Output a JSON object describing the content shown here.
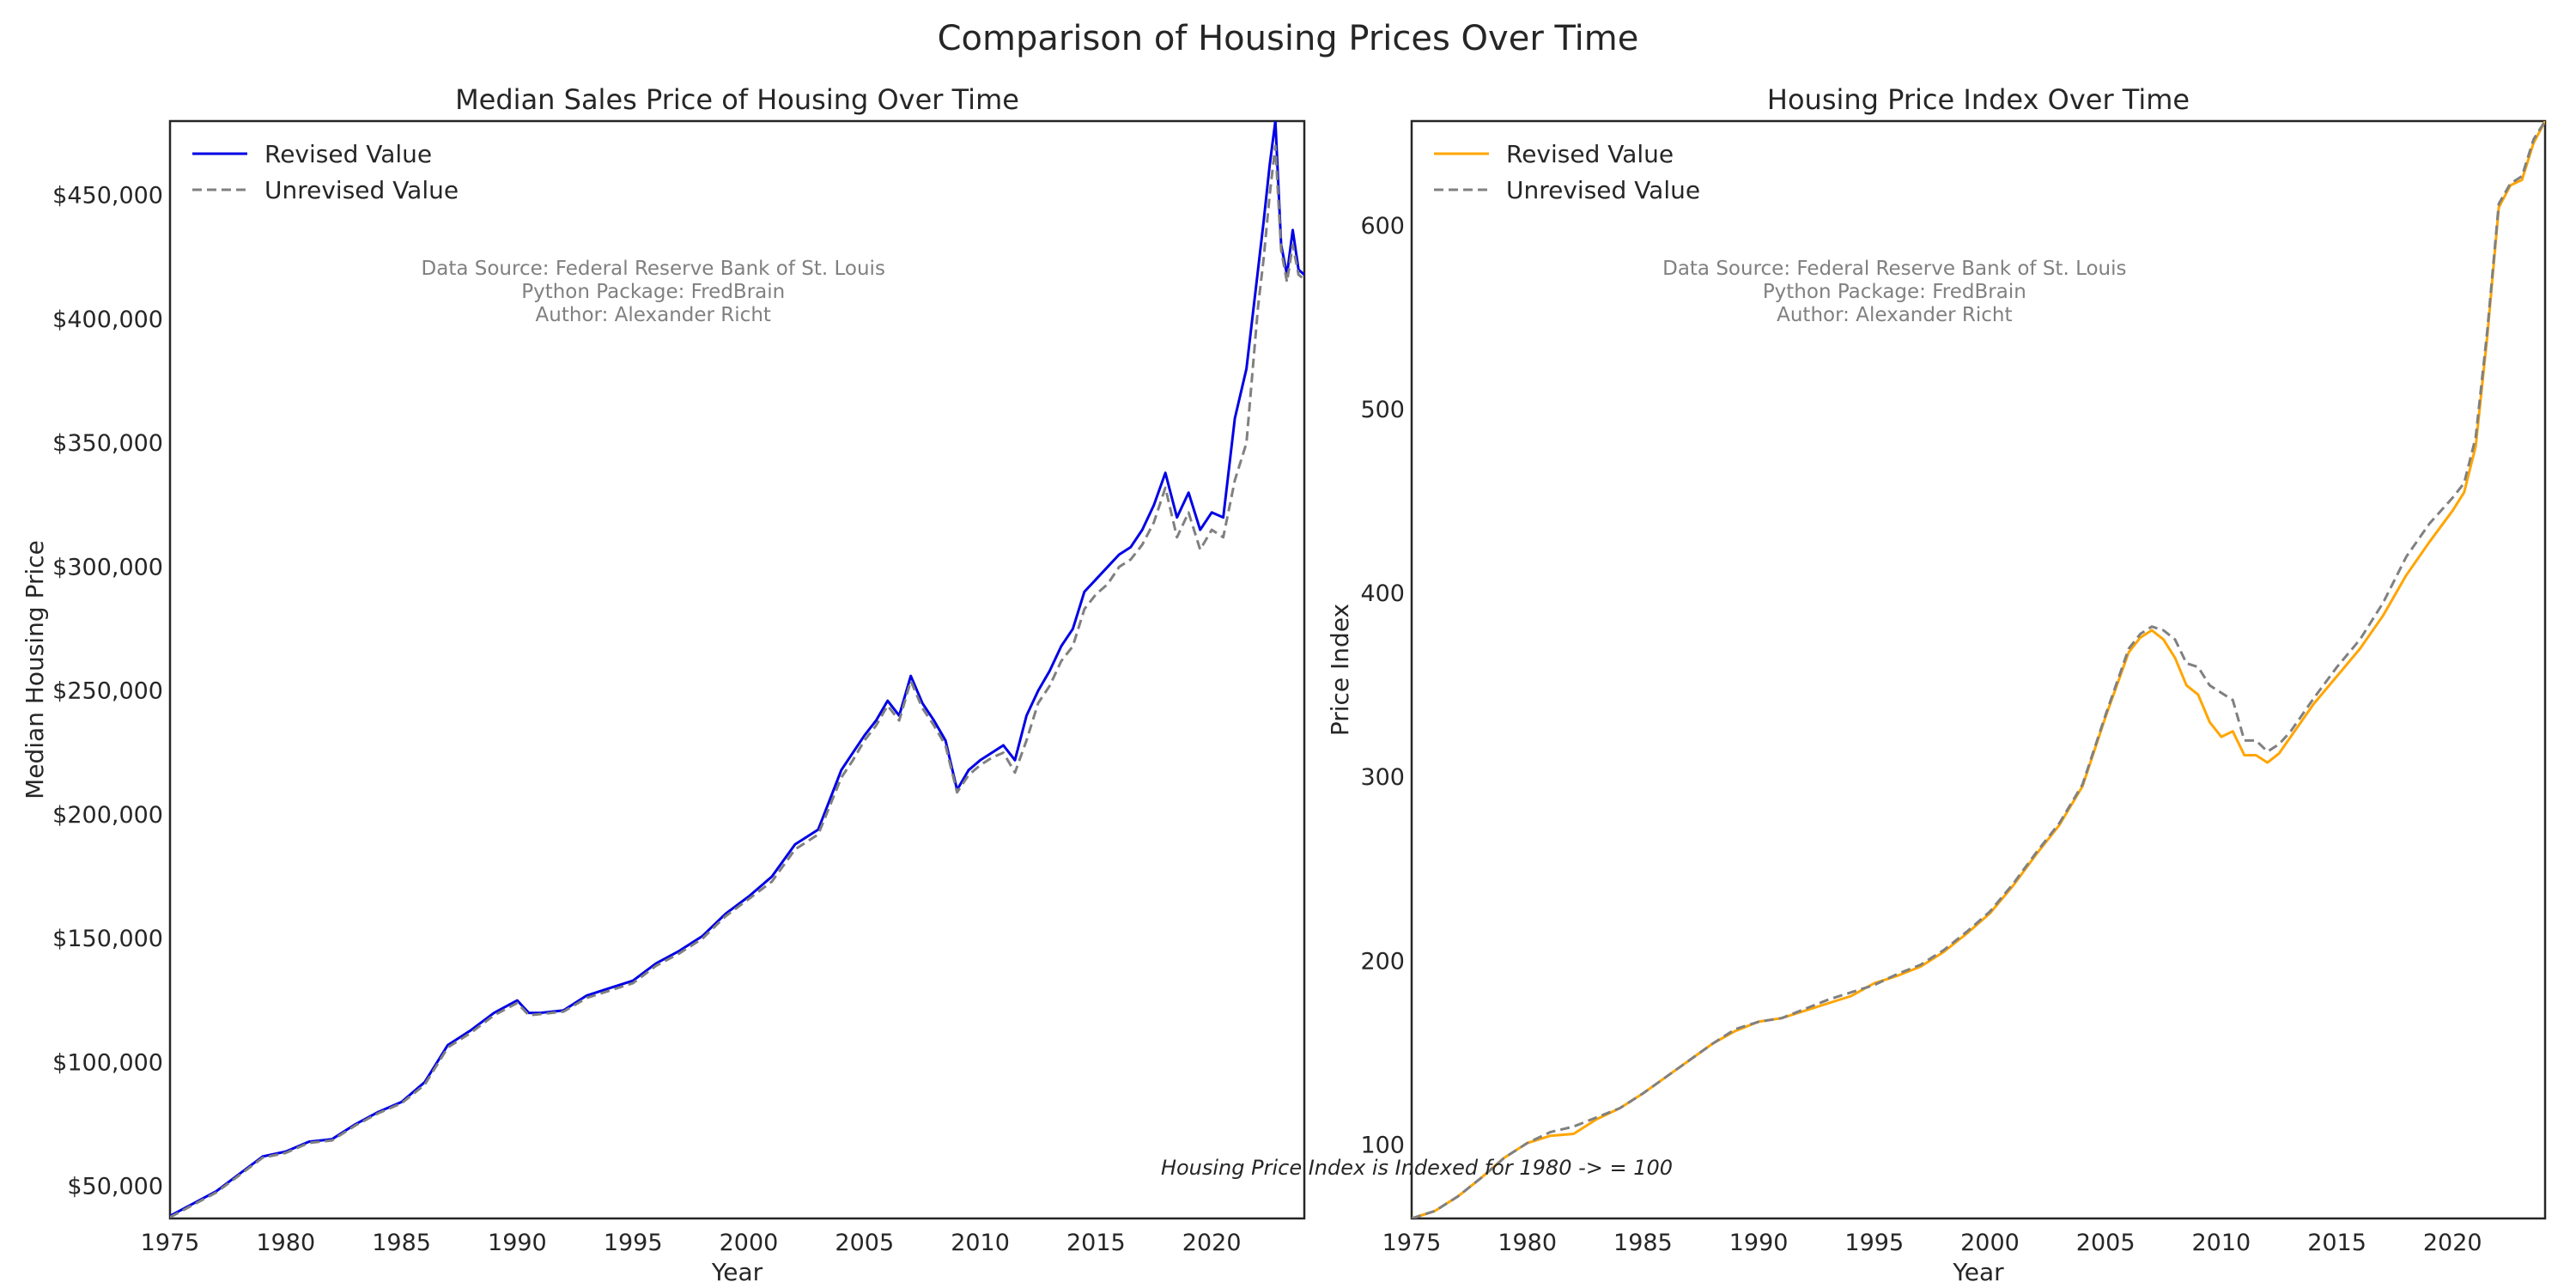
{
  "figure": {
    "suptitle": "Comparison of Housing Prices Over Time",
    "footnote": "Housing Price Index is Indexed for 1980 -> = 100"
  },
  "colors": {
    "revised_left": "#0000e6",
    "revised_right": "#ffa500",
    "unrevised": "#808080",
    "source_text": "#808080"
  },
  "chart_data": [
    {
      "type": "line",
      "title": "Median Sales Price of Housing Over Time",
      "xlabel": "Year",
      "ylabel": "Median Housing Price",
      "xlim": [
        1975,
        2024
      ],
      "ylim": [
        37000,
        480000
      ],
      "xticks": [
        1975,
        1980,
        1985,
        1990,
        1995,
        2000,
        2005,
        2010,
        2015,
        2020
      ],
      "xtick_labels": [
        "1975",
        "1980",
        "1985",
        "1990",
        "1995",
        "2000",
        "2005",
        "2010",
        "2015",
        "2020"
      ],
      "yticks": [
        50000,
        100000,
        150000,
        200000,
        250000,
        300000,
        350000,
        400000,
        450000
      ],
      "ytick_labels": [
        "$50,000",
        "$100,000",
        "$150,000",
        "$200,000",
        "$250,000",
        "$300,000",
        "$350,000",
        "$400,000",
        "$450,000"
      ],
      "legend": "top-left",
      "grid": false,
      "annotation": [
        "Data Source: Federal Reserve Bank of St. Louis",
        "Python Package: FredBrain",
        "Author: Alexander Richt"
      ],
      "series": [
        {
          "name": "Revised Value",
          "style": "solid",
          "color": "#0000e6",
          "x": [
            1975,
            1976,
            1977,
            1978,
            1979,
            1980,
            1981,
            1982,
            1983,
            1984,
            1985,
            1986,
            1987,
            1988,
            1989,
            1990,
            1990.5,
            1991,
            1992,
            1993,
            1994,
            1995,
            1996,
            1997,
            1998,
            1999,
            2000,
            2001,
            2002,
            2003,
            2004,
            2004.5,
            2005,
            2005.5,
            2006,
            2006.5,
            2007,
            2007.5,
            2008,
            2008.5,
            2009,
            2009.5,
            2010,
            2010.5,
            2011,
            2011.5,
            2012,
            2012.5,
            2013,
            2013.5,
            2014,
            2014.5,
            2015,
            2015.5,
            2016,
            2016.5,
            2017,
            2017.5,
            2018,
            2018.5,
            2019,
            2019.5,
            2020,
            2020.5,
            2021,
            2021.5,
            2022,
            2022.25,
            2022.5,
            2022.75,
            2023,
            2023.25,
            2023.5,
            2023.75,
            2024
          ],
          "y": [
            38000,
            43000,
            48000,
            55000,
            62000,
            64000,
            68000,
            69000,
            75000,
            80000,
            84000,
            92000,
            107000,
            113000,
            120000,
            125000,
            120000,
            120000,
            121000,
            127000,
            130000,
            133000,
            140000,
            145000,
            151000,
            160000,
            167000,
            175000,
            188000,
            194000,
            218000,
            225000,
            232000,
            238000,
            246000,
            240000,
            256000,
            245000,
            238000,
            230000,
            210000,
            218000,
            222000,
            225000,
            228000,
            222000,
            240000,
            250000,
            258000,
            268000,
            275000,
            290000,
            295000,
            300000,
            305000,
            308000,
            315000,
            325000,
            338000,
            320000,
            330000,
            315000,
            322000,
            320000,
            360000,
            380000,
            420000,
            440000,
            462000,
            480000,
            430000,
            418000,
            436000,
            420000,
            418000
          ]
        },
        {
          "name": "Unrevised Value",
          "style": "dashed",
          "color": "#808080",
          "x": [
            1975,
            1976,
            1977,
            1978,
            1979,
            1980,
            1981,
            1982,
            1983,
            1984,
            1985,
            1986,
            1987,
            1988,
            1989,
            1990,
            1990.5,
            1991,
            1992,
            1993,
            1994,
            1995,
            1996,
            1997,
            1998,
            1999,
            2000,
            2001,
            2002,
            2003,
            2004,
            2004.5,
            2005,
            2005.5,
            2006,
            2006.5,
            2007,
            2007.5,
            2008,
            2008.5,
            2009,
            2009.5,
            2010,
            2010.5,
            2011,
            2011.5,
            2012,
            2012.5,
            2013,
            2013.5,
            2014,
            2014.5,
            2015,
            2015.5,
            2016,
            2016.5,
            2017,
            2017.5,
            2018,
            2018.5,
            2019,
            2019.5,
            2020,
            2020.5,
            2021,
            2021.5,
            2022,
            2022.25,
            2022.5,
            2022.75,
            2023,
            2023.25,
            2023.5,
            2023.75,
            2024
          ],
          "y": [
            37500,
            42500,
            47500,
            54500,
            61500,
            63500,
            67500,
            68500,
            74500,
            79500,
            83500,
            91000,
            106000,
            112000,
            119000,
            124000,
            119000,
            119500,
            120500,
            126000,
            129000,
            132000,
            139000,
            144000,
            150000,
            159000,
            166000,
            173000,
            186000,
            192000,
            215000,
            222000,
            230000,
            236000,
            244000,
            238000,
            254000,
            243000,
            236000,
            228000,
            209000,
            216000,
            220000,
            223000,
            225000,
            217000,
            230000,
            245000,
            252000,
            262000,
            268000,
            283000,
            289000,
            293000,
            300000,
            303000,
            309000,
            318000,
            332000,
            312000,
            322000,
            307000,
            315000,
            312000,
            335000,
            350000,
            405000,
            425000,
            450000,
            470000,
            428000,
            415000,
            430000,
            418000,
            416000
          ]
        }
      ]
    },
    {
      "type": "line",
      "title": "Housing Price Index Over Time",
      "xlabel": "Year",
      "ylabel": "Price Index",
      "xlim": [
        1975,
        2024
      ],
      "ylim": [
        60,
        657
      ],
      "xticks": [
        1975,
        1980,
        1985,
        1990,
        1995,
        2000,
        2005,
        2010,
        2015,
        2020
      ],
      "xtick_labels": [
        "1975",
        "1980",
        "1985",
        "1990",
        "1995",
        "2000",
        "2005",
        "2010",
        "2015",
        "2020"
      ],
      "yticks": [
        100,
        200,
        300,
        400,
        500,
        600
      ],
      "ytick_labels": [
        "100",
        "200",
        "300",
        "400",
        "500",
        "600"
      ],
      "legend": "top-left",
      "grid": false,
      "annotation": [
        "Data Source: Federal Reserve Bank of St. Louis",
        "Python Package: FredBrain",
        "Author: Alexander Richt"
      ],
      "series": [
        {
          "name": "Revised Value",
          "style": "solid",
          "color": "#ffa500",
          "x": [
            1975,
            1976,
            1977,
            1978,
            1979,
            1980,
            1981,
            1982,
            1983,
            1984,
            1985,
            1986,
            1987,
            1988,
            1989,
            1990,
            1991,
            1992,
            1993,
            1994,
            1995,
            1996,
            1997,
            1998,
            1999,
            2000,
            2001,
            2002,
            2003,
            2004,
            2005,
            2006,
            2006.5,
            2007,
            2007.5,
            2008,
            2008.5,
            2009,
            2009.5,
            2010,
            2010.5,
            2011,
            2011.5,
            2012,
            2012.5,
            2013,
            2014,
            2015,
            2016,
            2017,
            2018,
            2019,
            2020,
            2020.5,
            2021,
            2021.5,
            2022,
            2022.5,
            2023,
            2023.5,
            2024
          ],
          "y": [
            60,
            64,
            72,
            82,
            93,
            101,
            105,
            106,
            114,
            120,
            128,
            137,
            146,
            155,
            162,
            167,
            169,
            173,
            177,
            181,
            188,
            192,
            197,
            205,
            215,
            226,
            241,
            258,
            274,
            295,
            333,
            368,
            376,
            380,
            375,
            365,
            350,
            345,
            330,
            322,
            325,
            312,
            312,
            308,
            313,
            322,
            340,
            355,
            370,
            388,
            410,
            428,
            445,
            455,
            480,
            540,
            610,
            622,
            625,
            645,
            657
          ]
        },
        {
          "name": "Unrevised Value",
          "style": "dashed",
          "color": "#808080",
          "x": [
            1975,
            1976,
            1977,
            1978,
            1979,
            1980,
            1981,
            1982,
            1983,
            1984,
            1985,
            1986,
            1987,
            1988,
            1989,
            1990,
            1991,
            1992,
            1993,
            1994,
            1995,
            1996,
            1997,
            1998,
            1999,
            2000,
            2001,
            2002,
            2003,
            2004,
            2005,
            2006,
            2006.5,
            2007,
            2007.5,
            2008,
            2008.5,
            2009,
            2009.5,
            2010,
            2010.5,
            2011,
            2011.5,
            2012,
            2012.5,
            2013,
            2014,
            2015,
            2016,
            2017,
            2018,
            2019,
            2020,
            2020.5,
            2021,
            2021.5,
            2022,
            2022.5,
            2023,
            2023.5,
            2024
          ],
          "y": [
            60,
            64,
            72,
            82,
            93,
            101,
            107,
            110,
            115,
            120,
            128,
            137,
            146,
            155,
            163,
            167,
            169,
            174,
            179,
            183,
            187,
            193,
            198,
            206,
            216,
            227,
            242,
            259,
            275,
            296,
            334,
            370,
            378,
            382,
            380,
            375,
            362,
            360,
            350,
            346,
            342,
            320,
            320,
            314,
            318,
            325,
            343,
            360,
            375,
            395,
            420,
            438,
            452,
            460,
            485,
            543,
            612,
            623,
            627,
            647,
            657
          ]
        }
      ]
    }
  ]
}
